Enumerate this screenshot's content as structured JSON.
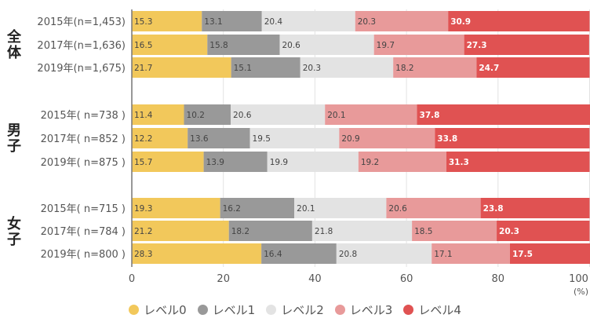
{
  "chart_data": {
    "type": "bar",
    "orientation": "horizontal",
    "stacked": true,
    "groups": [
      {
        "label": "全体",
        "categories": [
          "2015年(n=1,453)",
          "2017年(n=1,636)",
          "2019年(n=1,675)"
        ]
      },
      {
        "label": "男子",
        "categories": [
          "2015年( n=738 )",
          "2017年( n=852 )",
          "2019年( n=875 )"
        ]
      },
      {
        "label": "女子",
        "categories": [
          "2015年( n=715 )",
          "2017年( n=784 )",
          "2019年( n=800 )"
        ]
      }
    ],
    "categories": [
      "2015年(n=1,453)",
      "2017年(n=1,636)",
      "2019年(n=1,675)",
      "2015年( n=738 )",
      "2017年( n=852 )",
      "2019年( n=875 )",
      "2015年( n=715 )",
      "2017年( n=784 )",
      "2019年( n=800 )"
    ],
    "series": [
      {
        "name": "レベル0",
        "color": "#f2c85b",
        "values": [
          15.3,
          16.5,
          21.7,
          11.4,
          12.2,
          15.7,
          19.3,
          21.2,
          28.3
        ]
      },
      {
        "name": "レベル1",
        "color": "#999999",
        "values": [
          13.1,
          15.8,
          15.1,
          10.2,
          13.6,
          13.9,
          16.2,
          18.2,
          16.4
        ]
      },
      {
        "name": "レベル2",
        "color": "#e3e3e3",
        "values": [
          20.4,
          20.6,
          20.3,
          20.6,
          19.5,
          19.9,
          20.1,
          21.8,
          20.8
        ]
      },
      {
        "name": "レベル3",
        "color": "#e89a9a",
        "values": [
          20.3,
          19.7,
          18.2,
          20.1,
          20.9,
          19.2,
          20.6,
          18.5,
          17.1
        ]
      },
      {
        "name": "レベル4",
        "color": "#e05252",
        "values": [
          30.9,
          27.3,
          24.7,
          37.8,
          33.8,
          31.3,
          23.8,
          20.3,
          17.5
        ]
      }
    ],
    "xlim": [
      0,
      100
    ],
    "xticks": [
      "0",
      "20",
      "40",
      "60",
      "80",
      "100"
    ],
    "xunit": "(%)",
    "legend_position": "bottom",
    "grid": true
  }
}
